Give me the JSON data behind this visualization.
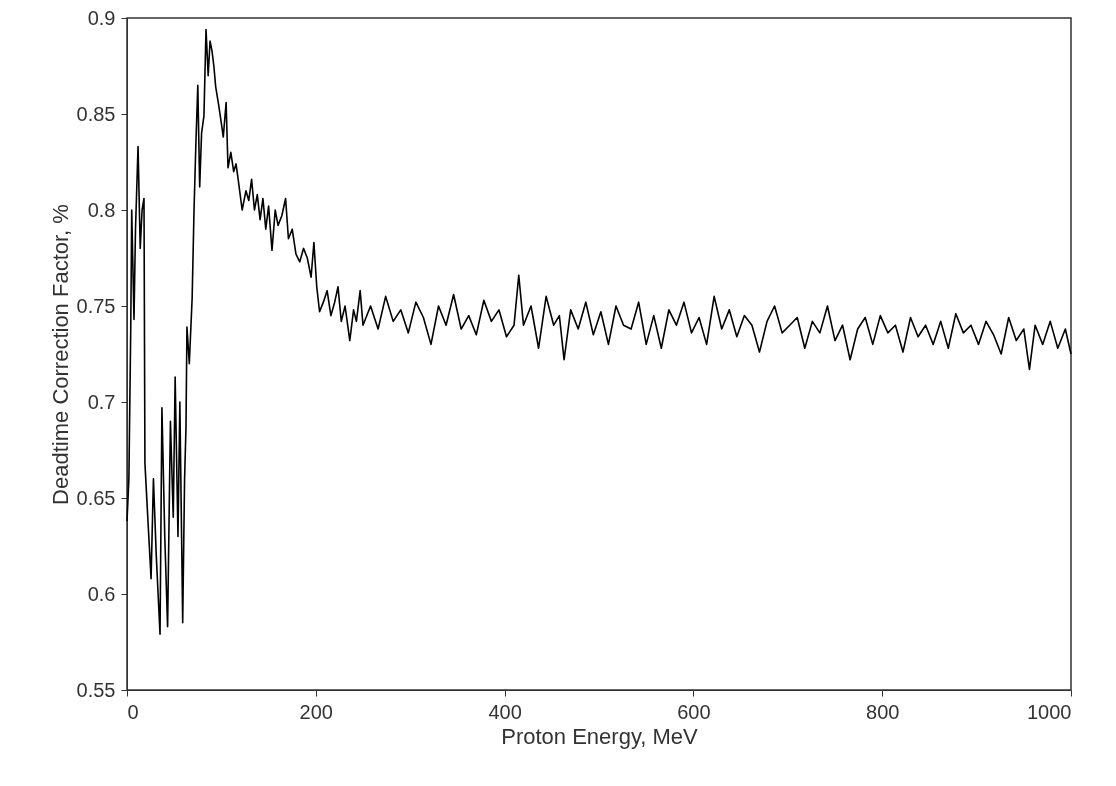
{
  "chart_data": {
    "type": "line",
    "xlabel": "Proton Energy, MeV",
    "ylabel": "Deadtime Correction Factor, %",
    "xlim": [
      0,
      1000
    ],
    "ylim": [
      0.55,
      0.9
    ],
    "xticks": [
      0,
      200,
      400,
      600,
      800,
      1000
    ],
    "yticks": [
      0.55,
      0.6,
      0.65,
      0.7,
      0.75,
      0.8,
      0.85,
      0.9
    ],
    "grid": false,
    "series": [
      {
        "color": "#000000",
        "x": [
          0,
          2,
          4,
          5,
          7.4,
          9,
          11.7,
          14,
          16,
          18,
          19,
          22,
          25.5,
          28,
          31,
          35,
          37,
          40,
          43,
          46,
          49,
          51,
          54,
          56,
          59,
          61,
          62.5,
          63.5,
          66,
          69,
          71,
          73,
          75,
          77,
          79,
          81.5,
          83.7,
          86,
          88,
          90,
          92,
          94,
          97,
          100,
          102,
          105,
          107,
          110,
          113,
          115.5,
          118,
          122,
          126,
          129,
          132,
          135,
          138,
          141,
          144,
          147,
          150,
          153.6,
          157,
          160,
          164,
          168,
          171,
          175,
          179,
          183,
          187,
          191,
          195,
          198,
          201,
          204,
          208,
          212,
          216,
          220,
          223.5,
          227,
          231,
          236,
          240,
          243,
          247,
          250,
          258,
          266,
          274,
          282,
          290,
          298,
          306,
          314,
          322,
          330,
          338,
          346,
          354,
          362,
          370,
          378,
          386,
          394,
          402,
          410,
          415,
          420,
          428,
          436,
          444,
          452,
          458,
          463,
          470,
          478,
          486,
          494,
          502,
          510,
          518,
          526,
          534,
          542,
          550,
          558,
          566,
          574,
          582,
          590,
          598,
          606,
          614,
          622,
          630,
          638,
          646,
          654,
          662,
          670,
          678,
          686,
          694,
          702,
          710,
          718,
          726,
          734,
          742,
          750,
          758,
          766,
          774,
          782,
          790,
          798,
          806,
          814,
          822,
          830,
          838,
          846,
          854,
          862,
          870,
          878,
          886,
          894,
          902,
          910,
          918,
          926,
          934,
          942,
          950,
          956,
          962,
          970,
          978,
          986,
          994,
          1000
        ],
        "values": [
          0.638,
          0.66,
          0.74,
          0.8,
          0.743,
          0.79,
          0.833,
          0.78,
          0.8,
          0.806,
          0.668,
          0.64,
          0.608,
          0.66,
          0.62,
          0.579,
          0.697,
          0.63,
          0.583,
          0.69,
          0.64,
          0.713,
          0.63,
          0.7,
          0.585,
          0.66,
          0.687,
          0.739,
          0.72,
          0.754,
          0.8,
          0.835,
          0.865,
          0.812,
          0.84,
          0.849,
          0.894,
          0.87,
          0.888,
          0.883,
          0.875,
          0.864,
          0.855,
          0.845,
          0.838,
          0.856,
          0.822,
          0.83,
          0.82,
          0.824,
          0.815,
          0.8,
          0.81,
          0.805,
          0.816,
          0.8,
          0.808,
          0.795,
          0.806,
          0.79,
          0.802,
          0.779,
          0.8,
          0.792,
          0.797,
          0.806,
          0.785,
          0.79,
          0.777,
          0.773,
          0.78,
          0.775,
          0.765,
          0.783,
          0.76,
          0.747,
          0.752,
          0.758,
          0.745,
          0.752,
          0.76,
          0.742,
          0.75,
          0.732,
          0.748,
          0.742,
          0.758,
          0.74,
          0.75,
          0.738,
          0.755,
          0.742,
          0.748,
          0.736,
          0.752,
          0.744,
          0.73,
          0.75,
          0.74,
          0.756,
          0.738,
          0.745,
          0.735,
          0.753,
          0.742,
          0.748,
          0.734,
          0.74,
          0.766,
          0.74,
          0.75,
          0.728,
          0.755,
          0.74,
          0.745,
          0.722,
          0.748,
          0.738,
          0.752,
          0.735,
          0.747,
          0.73,
          0.75,
          0.74,
          0.738,
          0.752,
          0.73,
          0.745,
          0.728,
          0.748,
          0.74,
          0.752,
          0.736,
          0.744,
          0.73,
          0.755,
          0.738,
          0.748,
          0.734,
          0.745,
          0.74,
          0.726,
          0.742,
          0.75,
          0.736,
          0.74,
          0.744,
          0.728,
          0.742,
          0.736,
          0.75,
          0.732,
          0.74,
          0.722,
          0.738,
          0.744,
          0.73,
          0.745,
          0.736,
          0.74,
          0.726,
          0.744,
          0.734,
          0.74,
          0.73,
          0.742,
          0.728,
          0.746,
          0.736,
          0.74,
          0.73,
          0.742,
          0.735,
          0.725,
          0.744,
          0.732,
          0.738,
          0.717,
          0.74,
          0.73,
          0.742,
          0.728,
          0.738,
          0.725
        ]
      }
    ]
  }
}
